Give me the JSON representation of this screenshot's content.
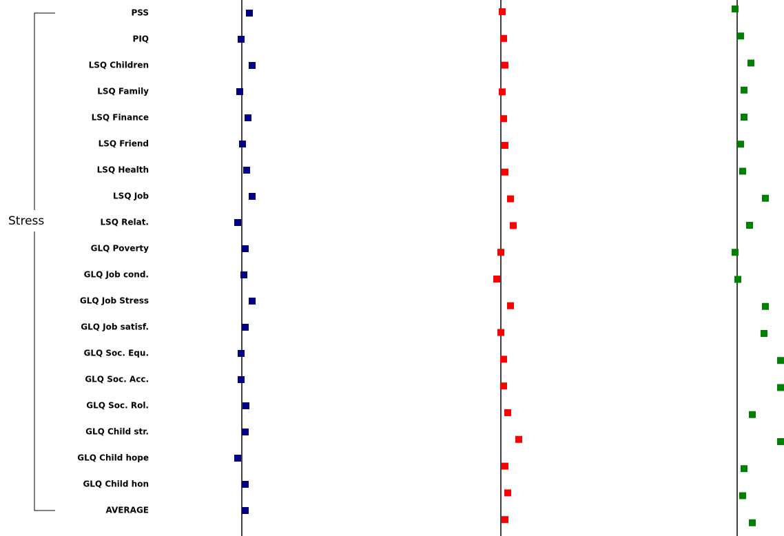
{
  "chart_data": {
    "type": "dot",
    "group_label": "Stress",
    "categories": [
      "PSS",
      "PIQ",
      "LSQ Children",
      "LSQ Family",
      "LSQ Finance",
      "LSQ Friend",
      "LSQ Health",
      "LSQ Job",
      "LSQ Relat.",
      "GLQ Poverty",
      "GLQ Job cond.",
      "GLQ Job Stress",
      "GLQ Job satisf.",
      "GLQ Soc. Equ.",
      "GLQ Soc. Acc.",
      "GLQ Soc. Rol.",
      "GLQ Child str.",
      "GLQ Child hope",
      "GLQ Child hon",
      "AVERAGE"
    ],
    "series": [
      {
        "color": "#000080",
        "values": [
          11,
          -1,
          15,
          -3,
          9,
          1,
          7,
          15,
          -6,
          5,
          3,
          15,
          5,
          -1,
          -1,
          6,
          5,
          -6,
          5,
          5
        ]
      },
      {
        "color": "#ff0000",
        "values": [
          2,
          4,
          6,
          2,
          4,
          6,
          6,
          14,
          18,
          0,
          -6,
          14,
          0,
          4,
          4,
          10,
          26,
          6,
          10,
          6
        ]
      },
      {
        "color": "#008000",
        "values": [
          -3,
          5,
          20,
          10,
          10,
          5,
          8,
          41,
          18,
          -3,
          1,
          41,
          39,
          63,
          63,
          22,
          63,
          10,
          8,
          22
        ]
      }
    ],
    "xlim": [
      -20,
      70
    ],
    "reference_line": 0
  }
}
